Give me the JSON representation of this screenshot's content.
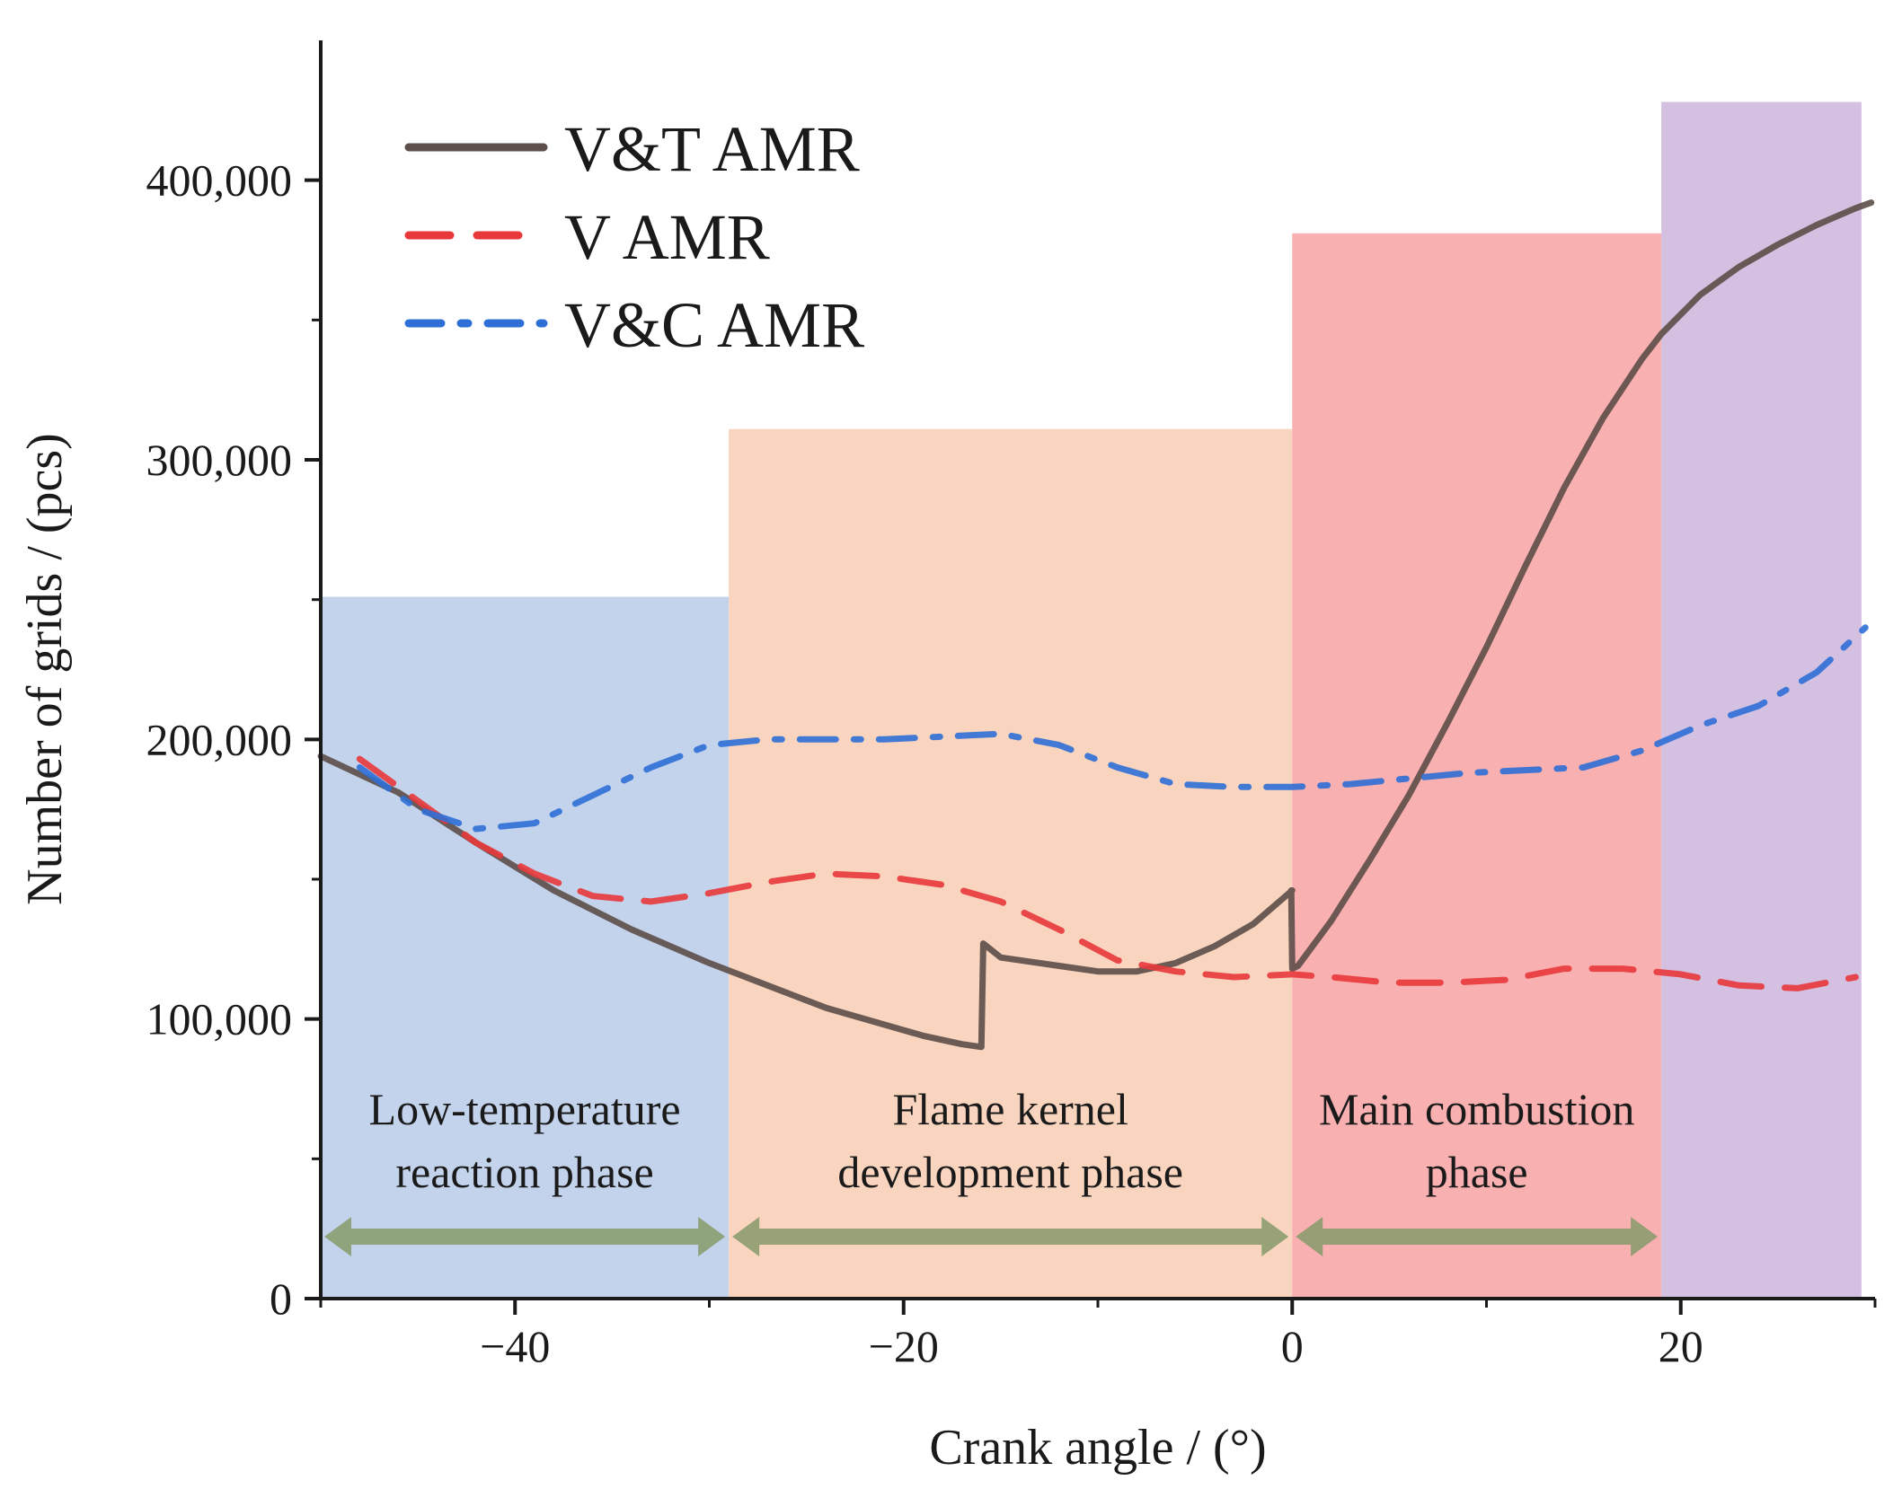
{
  "chart_data": {
    "type": "line",
    "title": "",
    "xlabel": "Crank angle / (°)",
    "ylabel": "Number of grids / (pcs)",
    "xlim": [
      -50,
      30
    ],
    "ylim": [
      0,
      450000
    ],
    "x_ticks": [
      -40,
      -20,
      0,
      20
    ],
    "x_tick_labels": [
      "−40",
      "−20",
      "0",
      "20"
    ],
    "y_ticks": [
      0,
      100000,
      200000,
      300000,
      400000
    ],
    "y_tick_labels": [
      "0",
      "100,000",
      "200,000",
      "300,000",
      "400,000"
    ],
    "legend_position": "top-left",
    "phases": [
      {
        "label_lines": [
          "Low-temperature",
          "reaction phase"
        ],
        "x_start": -50,
        "x_end": -29,
        "y_top": 251000,
        "color": "#c4d3ec"
      },
      {
        "label_lines": [
          "Flame kernel",
          "development phase"
        ],
        "x_start": -29,
        "x_end": 0,
        "y_top": 311000,
        "color": "#f9d5bf"
      },
      {
        "label_lines": [
          "Main combustion",
          "phase"
        ],
        "x_start": 0,
        "x_end": 19,
        "y_top": 381000,
        "color": "#f9b0b1"
      },
      {
        "label_lines": [],
        "x_start": 19,
        "x_end": 29.3,
        "y_top": 428000,
        "color": "#d4c0e1"
      }
    ],
    "series": [
      {
        "name": "V&T AMR",
        "color": "#5c4e48",
        "style": "solid",
        "x": [
          -50,
          -46,
          -42,
          -38,
          -34,
          -30,
          -27,
          -24,
          -21,
          -19,
          -17,
          -16,
          -15.9,
          -15,
          -12,
          -10,
          -8,
          -6,
          -4,
          -2,
          0,
          -0.05,
          0,
          0.3,
          2,
          4,
          6,
          8,
          10,
          12,
          14,
          16,
          18,
          19,
          21,
          23,
          25,
          27,
          29,
          29.8
        ],
        "y": [
          194000,
          181000,
          163000,
          146000,
          132000,
          120000,
          112000,
          104000,
          98000,
          94000,
          91000,
          90000,
          127000,
          122000,
          119000,
          117000,
          117000,
          120000,
          126000,
          134000,
          146000,
          146000,
          118000,
          119000,
          135000,
          157000,
          180000,
          206000,
          233000,
          262000,
          290000,
          315000,
          336000,
          345000,
          359000,
          369000,
          377000,
          384000,
          390000,
          392000
        ]
      },
      {
        "name": "V AMR",
        "color": "#e8383b",
        "style": "dashed",
        "x": [
          -48,
          -45,
          -42,
          -39,
          -36,
          -33,
          -30,
          -27,
          -24,
          -21,
          -18,
          -15,
          -12,
          -9,
          -6,
          -3,
          0,
          2,
          5,
          8,
          11,
          14,
          17,
          20,
          23,
          26,
          29
        ],
        "y": [
          193000,
          178000,
          163000,
          152000,
          144000,
          142000,
          145000,
          149000,
          152000,
          151000,
          148000,
          142000,
          132000,
          121000,
          117000,
          115000,
          116000,
          115000,
          113000,
          113000,
          114000,
          118000,
          118000,
          116000,
          112000,
          111000,
          115000
        ]
      },
      {
        "name": "V&C AMR",
        "color": "#2e6fd6",
        "style": "dashdot",
        "x": [
          -48,
          -45,
          -42,
          -39,
          -36,
          -33,
          -30,
          -27,
          -24,
          -21,
          -18,
          -15,
          -12,
          -9,
          -6,
          -3,
          0,
          3,
          6,
          9,
          12,
          15,
          18,
          21,
          24,
          27,
          29.5
        ],
        "y": [
          190000,
          175000,
          168000,
          170000,
          180000,
          190000,
          198000,
          200000,
          200000,
          200000,
          201000,
          202000,
          198000,
          190000,
          184000,
          183000,
          183000,
          184000,
          186000,
          188000,
          189000,
          190000,
          196000,
          205000,
          212000,
          224000,
          240000
        ]
      }
    ]
  }
}
